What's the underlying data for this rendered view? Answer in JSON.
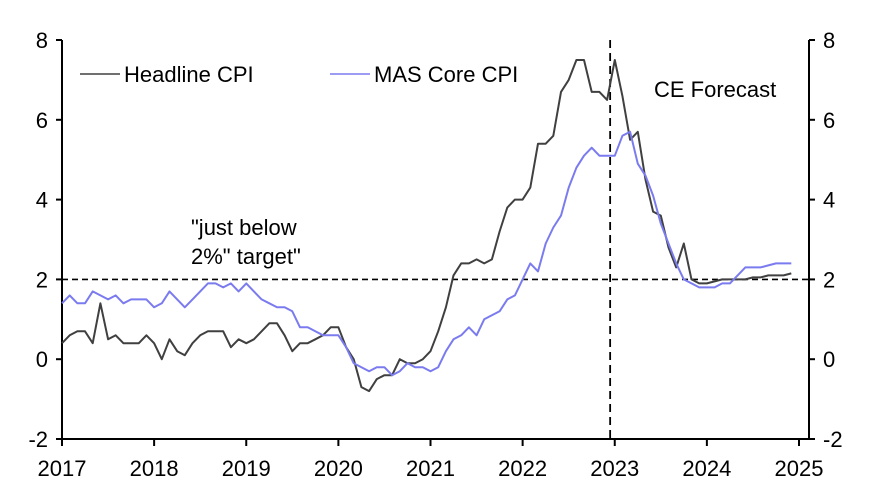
{
  "chart_data": {
    "type": "line",
    "title": "",
    "xlabel": "",
    "ylabel_left": "",
    "ylabel_right": "",
    "ylim": [
      -2,
      8
    ],
    "xlim": [
      2017,
      2025
    ],
    "y_ticks": [
      -2,
      0,
      2,
      4,
      6,
      8
    ],
    "y_tick_labels": [
      "-2",
      "0",
      "2",
      "4",
      "6",
      "8"
    ],
    "x_ticks": [
      2017,
      2018,
      2019,
      2020,
      2021,
      2022,
      2023,
      2024,
      2025
    ],
    "x_tick_labels": [
      "2017",
      "2018",
      "2019",
      "2020",
      "2021",
      "2022",
      "2023",
      "2024",
      "2025"
    ],
    "grid": false,
    "legend_position": "top-left",
    "x_start": "2017-01",
    "frequency": "monthly",
    "series": [
      {
        "name": "Headline CPI",
        "color": "#404040",
        "values": [
          0.4,
          0.6,
          0.7,
          0.7,
          0.4,
          1.4,
          0.5,
          0.6,
          0.4,
          0.4,
          0.4,
          0.6,
          0.4,
          0.0,
          0.5,
          0.2,
          0.1,
          0.4,
          0.6,
          0.7,
          0.7,
          0.7,
          0.3,
          0.5,
          0.4,
          0.5,
          0.7,
          0.9,
          0.9,
          0.6,
          0.2,
          0.4,
          0.4,
          0.5,
          0.6,
          0.8,
          0.8,
          0.3,
          0.0,
          -0.7,
          -0.8,
          -0.5,
          -0.4,
          -0.4,
          0.0,
          -0.1,
          -0.1,
          0.0,
          0.2,
          0.7,
          1.3,
          2.1,
          2.4,
          2.4,
          2.5,
          2.4,
          2.5,
          3.2,
          3.8,
          4.0,
          4.0,
          4.3,
          5.4,
          5.4,
          5.6,
          6.7,
          7.0,
          7.5,
          7.5,
          6.7,
          6.7,
          6.5,
          7.5,
          6.6,
          5.5,
          5.7,
          4.5,
          3.7,
          3.6,
          2.8,
          2.3,
          2.9,
          2.0,
          1.9,
          1.9,
          1.95,
          2.0,
          2.0,
          2.0,
          2.0,
          2.05,
          2.05,
          2.1,
          2.1,
          2.1,
          2.15
        ]
      },
      {
        "name": "MAS Core CPI",
        "color": "#7b7bf0",
        "values": [
          1.4,
          1.6,
          1.4,
          1.4,
          1.7,
          1.6,
          1.5,
          1.6,
          1.4,
          1.5,
          1.5,
          1.5,
          1.3,
          1.4,
          1.7,
          1.5,
          1.3,
          1.5,
          1.7,
          1.9,
          1.9,
          1.8,
          1.9,
          1.7,
          1.9,
          1.7,
          1.5,
          1.4,
          1.3,
          1.3,
          1.2,
          0.8,
          0.8,
          0.7,
          0.6,
          0.6,
          0.6,
          0.3,
          -0.1,
          -0.2,
          -0.3,
          -0.2,
          -0.2,
          -0.4,
          -0.3,
          -0.1,
          -0.2,
          -0.2,
          -0.3,
          -0.2,
          0.2,
          0.5,
          0.6,
          0.8,
          0.6,
          1.0,
          1.1,
          1.2,
          1.5,
          1.6,
          2.0,
          2.4,
          2.2,
          2.9,
          3.3,
          3.6,
          4.3,
          4.8,
          5.1,
          5.3,
          5.1,
          5.1,
          5.1,
          5.6,
          5.7,
          4.9,
          4.6,
          4.1,
          3.4,
          2.9,
          2.4,
          2.0,
          1.9,
          1.8,
          1.8,
          1.8,
          1.9,
          1.9,
          2.1,
          2.3,
          2.3,
          2.3,
          2.35,
          2.4,
          2.4,
          2.4
        ]
      }
    ],
    "reference_lines": [
      {
        "orientation": "horizontal",
        "value": 2,
        "style": "dashed"
      },
      {
        "orientation": "vertical",
        "value": 2022.95,
        "style": "dashed"
      }
    ],
    "annotations": [
      {
        "text_line1": "\"just below",
        "text_line2": "2%\" target\""
      },
      {
        "text": "CE Forecast"
      }
    ]
  }
}
